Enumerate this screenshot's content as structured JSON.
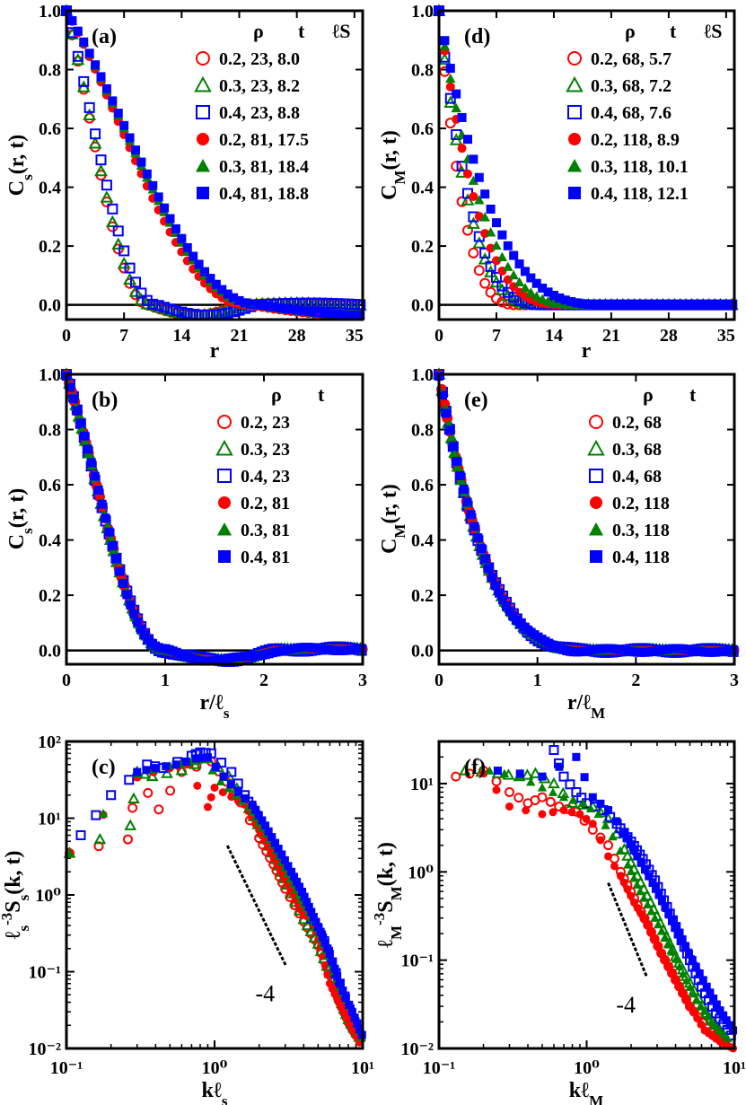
{
  "colors": {
    "red": "#ff0000",
    "green": "#008000",
    "blue": "#0000ff",
    "axis": "#000000"
  },
  "chart_data": [
    {
      "panel": "(a)",
      "type": "scatter",
      "xlabel": "r",
      "ylabel": "C_s(r, t)",
      "xlim": [
        0,
        36
      ],
      "ylim": [
        -0.05,
        1.0
      ],
      "xticks": [
        "0",
        "7",
        "14",
        "21",
        "28",
        "35"
      ],
      "yticks": [
        "0.0",
        "0.2",
        "0.4",
        "0.6",
        "0.8",
        "1.0"
      ],
      "legend_header": [
        "ρ",
        "t",
        "ℓS"
      ],
      "legend_position": "top-right",
      "zero_line": true,
      "series": [
        {
          "name": "0.2, 23, 8.0",
          "marker": "circle-open",
          "color": "#ff0000",
          "ell": 8.0,
          "scaling": "s"
        },
        {
          "name": "0.3, 23, 8.2",
          "marker": "triangle-open",
          "color": "#008000",
          "ell": 8.2,
          "scaling": "s"
        },
        {
          "name": "0.4, 23, 8.8",
          "marker": "square-open",
          "color": "#0000ff",
          "ell": 8.8,
          "scaling": "s"
        },
        {
          "name": "0.2, 81, 17.5",
          "marker": "circle-filled",
          "color": "#ff0000",
          "ell": 17.5,
          "scaling": "s"
        },
        {
          "name": "0.3, 81, 18.4",
          "marker": "triangle-filled",
          "color": "#008000",
          "ell": 18.4,
          "scaling": "s"
        },
        {
          "name": "0.4, 81, 18.8",
          "marker": "square-filled",
          "color": "#0000ff",
          "ell": 18.8,
          "scaling": "s"
        }
      ]
    },
    {
      "panel": "(b)",
      "type": "scatter",
      "xlabel": "r/ℓs",
      "ylabel": "C_s(r, t)",
      "xlim": [
        0,
        3
      ],
      "ylim": [
        -0.05,
        1.0
      ],
      "xticks": [
        "0",
        "1",
        "2",
        "3"
      ],
      "yticks": [
        "0.0",
        "0.2",
        "0.4",
        "0.6",
        "0.8",
        "1.0"
      ],
      "legend_header": [
        "ρ",
        "t"
      ],
      "legend_position": "top-right",
      "zero_line": true,
      "series": [
        {
          "name": "0.2, 23",
          "marker": "circle-open",
          "color": "#ff0000",
          "scaling": "s"
        },
        {
          "name": "0.3, 23",
          "marker": "triangle-open",
          "color": "#008000",
          "scaling": "s"
        },
        {
          "name": "0.4, 23",
          "marker": "square-open",
          "color": "#0000ff",
          "scaling": "s"
        },
        {
          "name": "0.2, 81",
          "marker": "circle-filled",
          "color": "#ff0000",
          "scaling": "s"
        },
        {
          "name": "0.3, 81",
          "marker": "triangle-filled",
          "color": "#008000",
          "scaling": "s"
        },
        {
          "name": "0.4, 81",
          "marker": "square-filled",
          "color": "#0000ff",
          "scaling": "s"
        }
      ]
    },
    {
      "panel": "(c)",
      "type": "scatter",
      "log": true,
      "xlabel": "kℓs",
      "ylabel": "ℓs⁻³Ss(k, t)",
      "xlim": [
        0.1,
        10
      ],
      "ylim": [
        0.01,
        100
      ],
      "xticks": [
        "10⁻¹",
        "10⁰",
        "10¹"
      ],
      "yticks": [
        "10⁻²",
        "10⁻¹",
        "10⁰",
        "10¹",
        "10²"
      ],
      "slope_label": "-4",
      "slope": -4,
      "reference_line": {
        "x": [
          1.22,
          3.03
        ],
        "y": [
          4.4,
          0.12
        ]
      },
      "series_points": [
        {
          "x": [
            0.105,
            0.26,
            0.3,
            0.42,
            0.6,
            0.95,
            1.2,
            1.5,
            2.0,
            2.5,
            3.0,
            4.0,
            5.0,
            6.0,
            7.0,
            8.0,
            9.0
          ],
          "y": [
            3.5,
            5.3,
            35,
            13,
            40,
            55,
            30,
            16,
            5.5,
            2.5,
            1.2,
            0.45,
            0.22,
            0.09,
            0.04,
            0.022,
            0.015
          ]
        },
        {
          "x": [
            0.105,
            0.27,
            0.3,
            0.38,
            0.6,
            0.9,
            1.25,
            1.6,
            2.1,
            2.6,
            3.1,
            4.0,
            5.0,
            6.0,
            7.0,
            8.0,
            9.5
          ],
          "y": [
            3.5,
            8,
            40,
            35,
            42,
            60,
            35,
            17,
            6.5,
            2.9,
            1.35,
            0.48,
            0.23,
            0.095,
            0.045,
            0.024,
            0.014
          ]
        },
        {
          "x": [
            0.125,
            0.2,
            0.35,
            0.45,
            0.7,
            0.8,
            0.95,
            1.3,
            1.6,
            2.0,
            2.5,
            3.0,
            3.5,
            4.5,
            5.5,
            7.0,
            9.5
          ],
          "y": [
            6,
            20,
            50,
            45,
            65,
            72,
            70,
            40,
            20,
            9,
            4.5,
            2.1,
            1.2,
            0.5,
            0.25,
            0.07,
            0.015
          ]
        },
        {
          "x": [
            0.105,
            0.3,
            0.5,
            0.65,
            0.9,
            1.0,
            1.3,
            1.6,
            2.0,
            2.4,
            2.9,
            3.4,
            4.0,
            4.5,
            5.2,
            6.0,
            7.0,
            8.0,
            9.5
          ],
          "y": [
            3.5,
            35,
            45,
            50,
            14,
            25,
            19,
            15,
            7,
            3.6,
            1.8,
            1.0,
            0.55,
            0.5,
            0.21,
            0.07,
            0.038,
            0.024,
            0.012
          ]
        },
        {
          "x": [
            0.105,
            0.3,
            0.5,
            0.7,
            0.85,
            1.1,
            1.4,
            1.7,
            2.1,
            2.6,
            3.1,
            3.7,
            4.3,
            5.0,
            5.8,
            7.0,
            8.5,
            9.8
          ],
          "y": [
            3.5,
            38,
            48,
            55,
            58,
            30,
            20,
            14,
            7.5,
            3.8,
            1.9,
            1.0,
            0.6,
            0.32,
            0.16,
            0.065,
            0.03,
            0.014
          ]
        },
        {
          "x": [
            0.3,
            0.4,
            0.55,
            0.75,
            0.9,
            1.15,
            1.45,
            1.8,
            2.2,
            2.7,
            3.3,
            3.9,
            4.5,
            5.2,
            6.0,
            7.0,
            8.5,
            9.9
          ],
          "y": [
            40,
            45,
            50,
            60,
            62,
            35,
            22,
            15,
            8,
            4,
            2.0,
            1.1,
            0.6,
            0.33,
            0.17,
            0.07,
            0.03,
            0.015
          ]
        }
      ]
    },
    {
      "panel": "(d)",
      "type": "scatter",
      "xlabel": "r",
      "ylabel": "C_M(r, t)",
      "xlim": [
        0,
        36
      ],
      "ylim": [
        -0.05,
        1.0
      ],
      "xticks": [
        "0",
        "7",
        "14",
        "21",
        "28",
        "35"
      ],
      "yticks": [
        "0.0",
        "0.2",
        "0.4",
        "0.6",
        "0.8",
        "1.0"
      ],
      "legend_header": [
        "ρ",
        "t",
        "ℓS"
      ],
      "legend_position": "top-right",
      "zero_line": true,
      "series": [
        {
          "name": "0.2, 68, 5.7",
          "marker": "circle-open",
          "color": "#ff0000",
          "ell": 5.7,
          "scaling": "m"
        },
        {
          "name": "0.3, 68, 7.2",
          "marker": "triangle-open",
          "color": "#008000",
          "ell": 7.2,
          "scaling": "m"
        },
        {
          "name": "0.4, 68, 7.6",
          "marker": "square-open",
          "color": "#0000ff",
          "ell": 7.6,
          "scaling": "m"
        },
        {
          "name": "0.2, 118, 8.9",
          "marker": "circle-filled",
          "color": "#ff0000",
          "ell": 8.9,
          "scaling": "m"
        },
        {
          "name": "0.3, 118, 10.1",
          "marker": "triangle-filled",
          "color": "#008000",
          "ell": 10.1,
          "scaling": "m"
        },
        {
          "name": "0.4, 118, 12.1",
          "marker": "square-filled",
          "color": "#0000ff",
          "ell": 12.1,
          "scaling": "m"
        }
      ]
    },
    {
      "panel": "(e)",
      "type": "scatter",
      "xlabel": "r/ℓM",
      "ylabel": "C_M(r, t)",
      "xlim": [
        0,
        3
      ],
      "ylim": [
        -0.05,
        1.0
      ],
      "xticks": [
        "0",
        "1",
        "2",
        "3"
      ],
      "yticks": [
        "0.0",
        "0.2",
        "0.4",
        "0.6",
        "0.8",
        "1.0"
      ],
      "legend_header": [
        "ρ",
        "t"
      ],
      "legend_position": "top-right",
      "zero_line": true,
      "series": [
        {
          "name": "0.2, 68",
          "marker": "circle-open",
          "color": "#ff0000",
          "scaling": "m"
        },
        {
          "name": "0.3, 68",
          "marker": "triangle-open",
          "color": "#008000",
          "scaling": "m"
        },
        {
          "name": "0.4, 68",
          "marker": "square-open",
          "color": "#0000ff",
          "scaling": "m"
        },
        {
          "name": "0.2, 118",
          "marker": "circle-filled",
          "color": "#ff0000",
          "scaling": "m"
        },
        {
          "name": "0.3, 118",
          "marker": "triangle-filled",
          "color": "#008000",
          "scaling": "m"
        },
        {
          "name": "0.4, 118",
          "marker": "square-filled",
          "color": "#0000ff",
          "scaling": "m"
        }
      ]
    },
    {
      "panel": "(f)",
      "type": "scatter",
      "log": true,
      "xlabel": "kℓM",
      "ylabel": "ℓM⁻³SM(k, t)",
      "xlim": [
        0.1,
        10
      ],
      "ylim": [
        0.01,
        30
      ],
      "xticks": [
        "10⁻¹",
        "10⁰",
        "10¹"
      ],
      "yticks": [
        "10⁻²",
        "10⁻¹",
        "10⁰",
        "10¹"
      ],
      "slope_label": "-4",
      "slope": -4,
      "reference_line": {
        "x": [
          1.4,
          2.55
        ],
        "y": [
          0.75,
          0.065
        ]
      },
      "series_points": [
        {
          "x": [
            0.13,
            0.2,
            0.3,
            0.4,
            0.5,
            0.65,
            0.85,
            1.1,
            1.4,
            1.7,
            2.1,
            2.6,
            3.2,
            4.0,
            5.0,
            6.5,
            8.5
          ],
          "y": [
            12,
            14,
            8,
            6,
            7,
            5.5,
            4.8,
            3,
            2,
            1.0,
            0.5,
            0.25,
            0.12,
            0.06,
            0.03,
            0.017,
            0.012
          ]
        },
        {
          "x": [
            0.15,
            0.25,
            0.35,
            0.45,
            0.6,
            0.8,
            1.1,
            1.4,
            1.8,
            2.2,
            2.7,
            3.3,
            4.0,
            5.0,
            6.5,
            8.5
          ],
          "y": [
            14,
            13,
            12,
            13,
            10,
            6,
            5.5,
            4,
            1.8,
            0.9,
            0.45,
            0.22,
            0.11,
            0.055,
            0.025,
            0.014
          ]
        },
        {
          "x": [
            0.6,
            0.7,
            0.85,
            1.0,
            1.3,
            1.6,
            2.0,
            2.4,
            2.9,
            3.5,
            4.2,
            5.0,
            6.0,
            7.5,
            9.5
          ],
          "y": [
            24,
            12,
            8,
            6,
            5,
            3.5,
            2.2,
            1.4,
            0.8,
            0.4,
            0.2,
            0.1,
            0.05,
            0.025,
            0.014
          ]
        },
        {
          "x": [
            0.2,
            0.3,
            0.5,
            0.7,
            0.9,
            1.1,
            1.4,
            1.7,
            2.1,
            2.6,
            3.2,
            4.0,
            5.0,
            6.3,
            8.0,
            9.8
          ],
          "y": [
            13,
            5.5,
            4.5,
            5,
            4.5,
            3.5,
            1.5,
            0.9,
            0.45,
            0.25,
            0.12,
            0.06,
            0.03,
            0.016,
            0.012,
            0.01
          ]
        },
        {
          "x": [
            0.22,
            0.35,
            0.5,
            0.7,
            0.95,
            1.2,
            1.5,
            1.9,
            2.3,
            2.9,
            3.6,
            4.5,
            5.6,
            7.0,
            9.0
          ],
          "y": [
            14,
            12,
            9,
            7,
            6,
            4.5,
            2.5,
            1.2,
            0.6,
            0.3,
            0.15,
            0.07,
            0.035,
            0.02,
            0.013
          ]
        },
        {
          "x": [
            0.25,
            0.5,
            0.85,
            1.1,
            1.4,
            1.8,
            2.2,
            2.8,
            3.4,
            4.2,
            5.2,
            6.5,
            8.0,
            9.8
          ],
          "y": [
            14,
            12,
            20,
            7,
            5,
            2.8,
            1.5,
            0.75,
            0.4,
            0.2,
            0.1,
            0.05,
            0.027,
            0.016
          ]
        }
      ]
    }
  ]
}
